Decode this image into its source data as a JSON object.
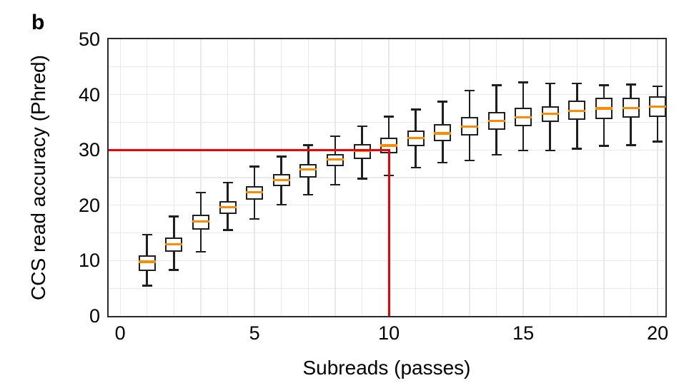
{
  "panel_label": "b",
  "colors": {
    "crosshair_red": "#f20000",
    "median_orange": "#ff8c00",
    "box_edge": "#1f1f1f",
    "grid": "#e9e9e9",
    "spine": "#2a2a2a",
    "background": "#ffffff",
    "text": "#000000"
  },
  "chart_data": {
    "type": "boxplot",
    "title": "",
    "xlabel": "Subreads (passes)",
    "ylabel": "CCS read accuracy (Phred)",
    "xlim": [
      -0.43,
      20.29
    ],
    "ylim": [
      0,
      50
    ],
    "x_ticks": [
      0,
      5,
      10,
      15,
      20
    ],
    "y_ticks": [
      0,
      10,
      20,
      30,
      40,
      50
    ],
    "x_grid_step": 1,
    "y_grid_step": 5,
    "grid": true,
    "boxes": [
      {
        "x": 1,
        "whislo": 5.5,
        "q1": 8.1,
        "med": 9.8,
        "q3": 11.0,
        "whishi": 14.7
      },
      {
        "x": 2,
        "whislo": 8.3,
        "q1": 11.6,
        "med": 12.9,
        "q3": 14.2,
        "whishi": 18.0
      },
      {
        "x": 3,
        "whislo": 11.6,
        "q1": 15.6,
        "med": 17.1,
        "q3": 18.3,
        "whishi": 22.3
      },
      {
        "x": 4,
        "whislo": 15.5,
        "q1": 18.4,
        "med": 19.7,
        "q3": 20.8,
        "whishi": 24.1
      },
      {
        "x": 5,
        "whislo": 17.5,
        "q1": 21.0,
        "med": 22.4,
        "q3": 23.5,
        "whishi": 27.0
      },
      {
        "x": 6,
        "whislo": 20.1,
        "q1": 23.4,
        "med": 24.5,
        "q3": 25.7,
        "whishi": 28.8
      },
      {
        "x": 7,
        "whislo": 21.9,
        "q1": 25.0,
        "med": 26.5,
        "q3": 27.5,
        "whishi": 30.9
      },
      {
        "x": 8,
        "whislo": 23.7,
        "q1": 27.1,
        "med": 28.3,
        "q3": 29.2,
        "whishi": 32.5
      },
      {
        "x": 9,
        "whislo": 24.8,
        "q1": 28.3,
        "med": 29.8,
        "q3": 31.0,
        "whishi": 34.3
      },
      {
        "x": 10,
        "whislo": 25.4,
        "q1": 29.4,
        "med": 30.8,
        "q3": 32.2,
        "whishi": 36.0
      },
      {
        "x": 11,
        "whislo": 26.8,
        "q1": 30.7,
        "med": 32.1,
        "q3": 33.5,
        "whishi": 37.3
      },
      {
        "x": 12,
        "whislo": 27.7,
        "q1": 31.6,
        "med": 33.0,
        "q3": 34.7,
        "whishi": 38.7
      },
      {
        "x": 13,
        "whislo": 28.1,
        "q1": 32.6,
        "med": 34.2,
        "q3": 36.0,
        "whishi": 40.7
      },
      {
        "x": 14,
        "whislo": 29.1,
        "q1": 33.6,
        "med": 35.2,
        "q3": 36.9,
        "whishi": 41.7
      },
      {
        "x": 15,
        "whislo": 29.9,
        "q1": 34.3,
        "med": 35.9,
        "q3": 37.6,
        "whishi": 42.2
      },
      {
        "x": 16,
        "whislo": 29.9,
        "q1": 35.0,
        "med": 36.5,
        "q3": 37.9,
        "whishi": 42.0
      },
      {
        "x": 17,
        "whislo": 30.2,
        "q1": 35.5,
        "med": 37.1,
        "q3": 38.9,
        "whishi": 42.0
      },
      {
        "x": 18,
        "whislo": 30.7,
        "q1": 35.6,
        "med": 37.5,
        "q3": 39.4,
        "whishi": 41.7
      },
      {
        "x": 19,
        "whislo": 30.9,
        "q1": 35.8,
        "med": 37.6,
        "q3": 39.4,
        "whishi": 41.8
      },
      {
        "x": 20,
        "whislo": 31.5,
        "q1": 36.0,
        "med": 37.8,
        "q3": 39.7,
        "whishi": 41.5
      }
    ],
    "crosshair": {
      "x": 10,
      "y": 30
    },
    "legend": null
  }
}
